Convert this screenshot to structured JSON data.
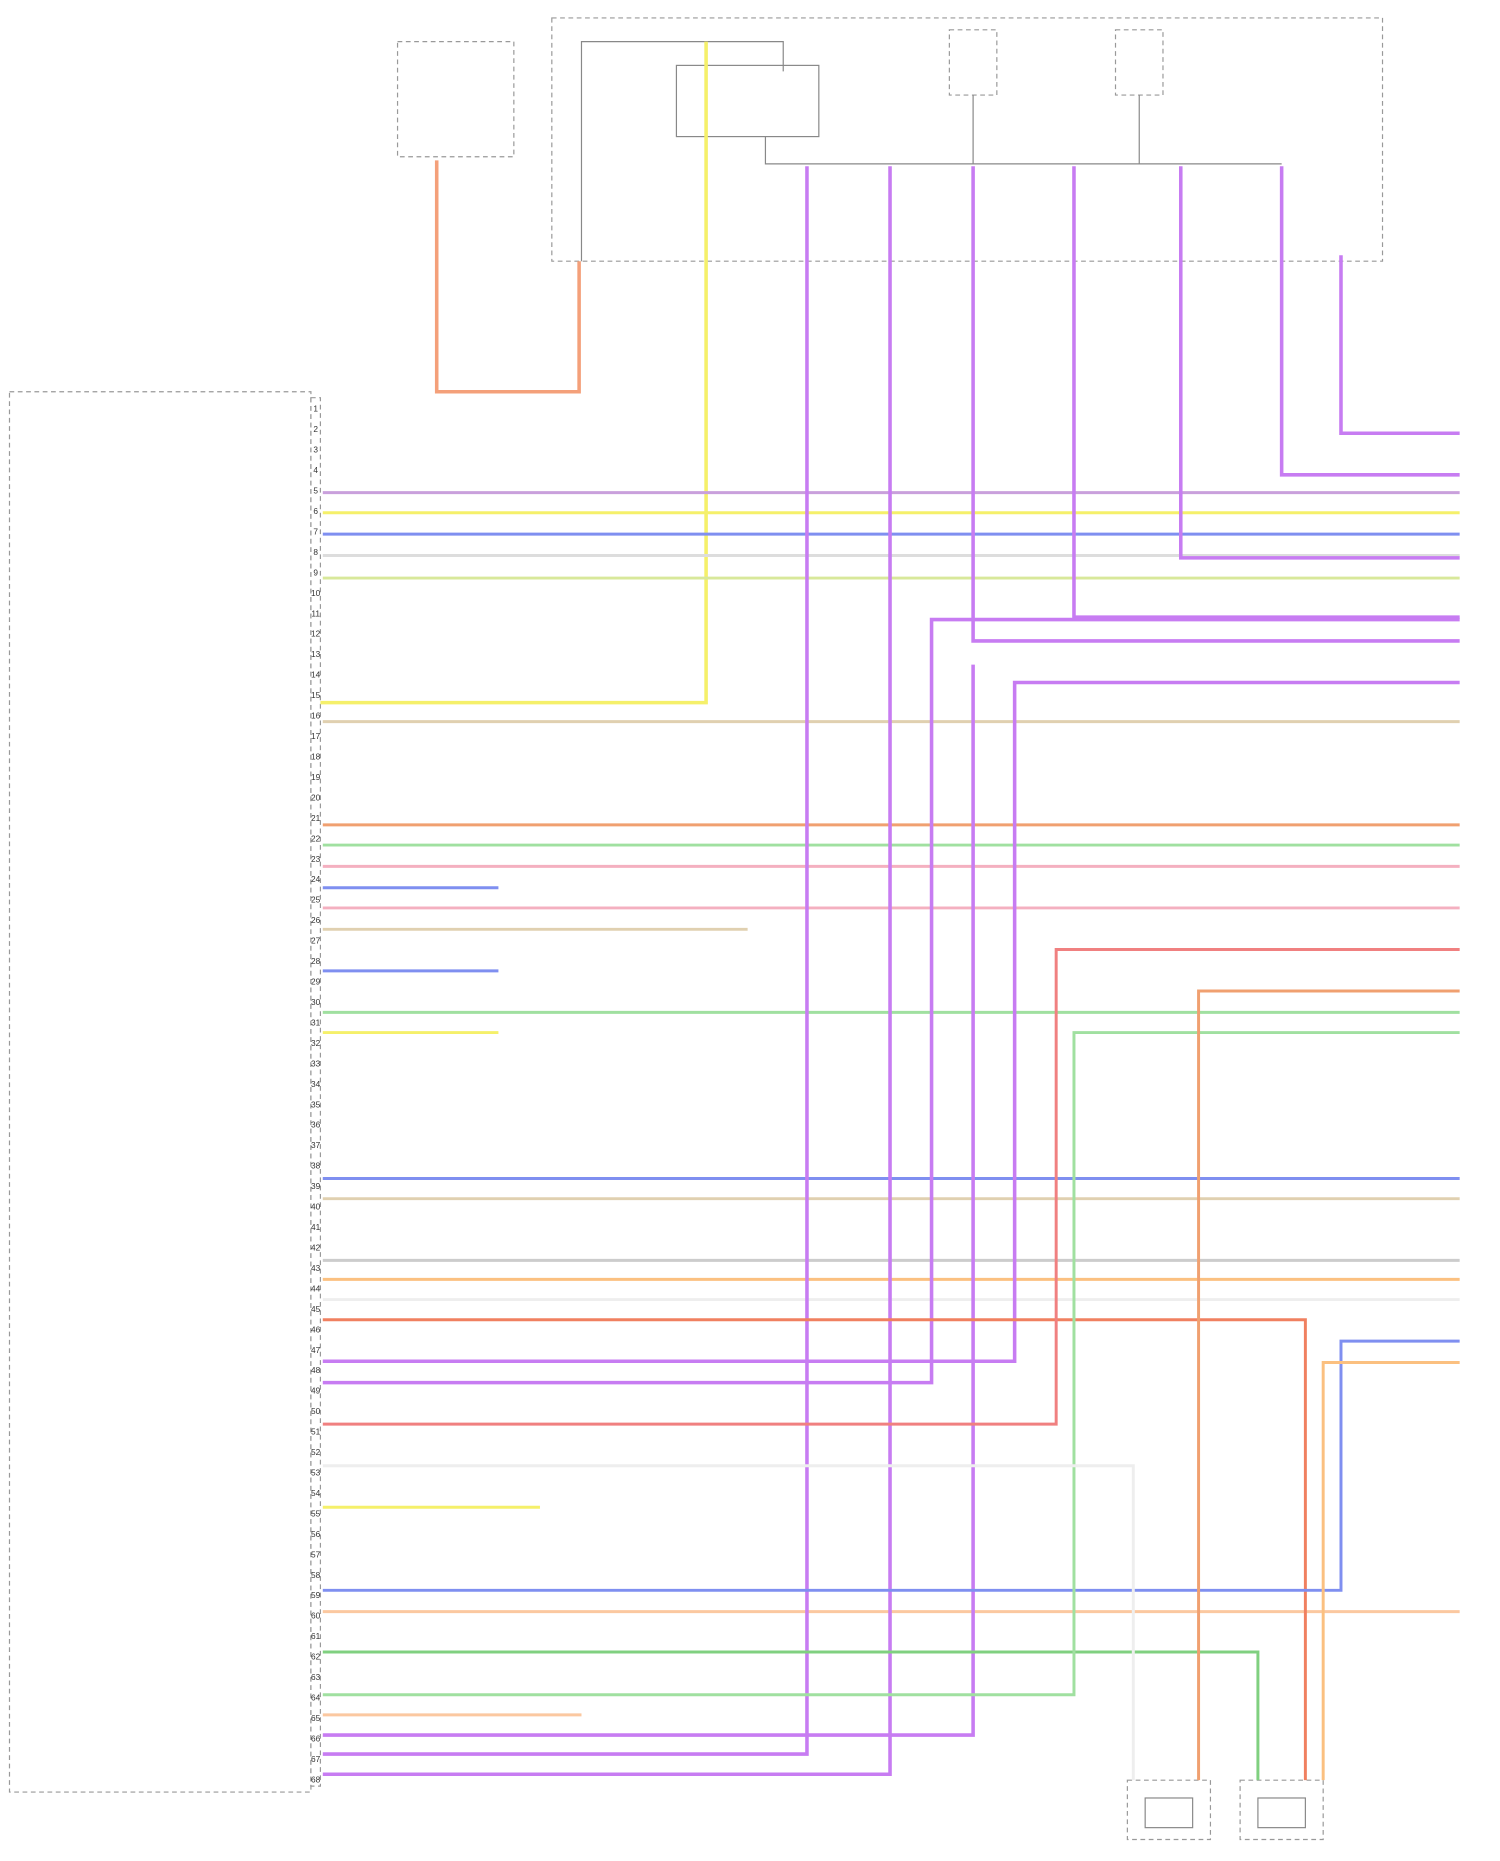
{
  "connector": {
    "pins": [
      "1",
      "2",
      "3",
      "4",
      "5",
      "6",
      "7",
      "8",
      "9",
      "10",
      "11",
      "12",
      "13",
      "14",
      "15",
      "16",
      "17",
      "18",
      "19",
      "20",
      "21",
      "22",
      "23",
      "24",
      "25",
      "26",
      "27",
      "28",
      "29",
      "30",
      "31",
      "32",
      "33",
      "34",
      "35",
      "36",
      "37",
      "38",
      "39",
      "40",
      "41",
      "42",
      "43",
      "44",
      "45",
      "46",
      "47",
      "48",
      "49",
      "50",
      "51",
      "52",
      "53",
      "54",
      "55",
      "56",
      "57",
      "58",
      "59",
      "60",
      "61",
      "62",
      "63",
      "64",
      "65",
      "66",
      "67",
      "68"
    ]
  }
}
